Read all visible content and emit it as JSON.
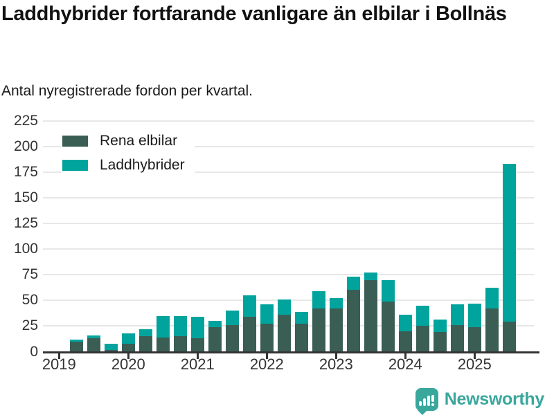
{
  "header": {
    "title": "Laddhybrider fortfarande vanligare än elbilar i Bollnäs",
    "subtitle": "Antal nyregistrerade fordon per kvartal."
  },
  "footer": {
    "brand": "Newsworthy"
  },
  "colors": {
    "electric_dark": "#3b5e54",
    "hybrid_teal": "#00a49d",
    "axis": "#333333",
    "gridline": "#e7e7e7",
    "brand_teal": "#3aa79d"
  },
  "chart_data": {
    "type": "bar",
    "stacked": true,
    "title": "Laddhybrider fortfarande vanligare än elbilar i Bollnäs",
    "subtitle": "Antal nyregistrerade fordon per kvartal.",
    "xlabel": "",
    "ylabel": "",
    "ylim": [
      0,
      225
    ],
    "ytick_step": 25,
    "grid": true,
    "legend_position": "top-left",
    "categories": [
      "2019 Q1",
      "2019 Q2",
      "2019 Q3",
      "2019 Q4",
      "2020 Q1",
      "2020 Q2",
      "2020 Q3",
      "2020 Q4",
      "2021 Q1",
      "2021 Q2",
      "2021 Q3",
      "2021 Q4",
      "2022 Q1",
      "2022 Q2",
      "2022 Q3",
      "2022 Q4",
      "2023 Q1",
      "2023 Q2",
      "2023 Q3",
      "2023 Q4",
      "2024 Q1",
      "2024 Q2",
      "2024 Q3",
      "2024 Q4",
      "2025 Q1",
      "2025 Q2",
      "2025 Q3"
    ],
    "series": [
      {
        "name": "Rena elbilar",
        "color": "#3b5e54",
        "values": [
          0,
          10,
          13,
          2,
          8,
          15,
          14,
          15,
          13,
          24,
          26,
          34,
          27,
          36,
          27,
          42,
          42,
          60,
          70,
          49,
          20,
          25,
          19,
          26,
          24,
          42,
          29
        ]
      },
      {
        "name": "Laddhybrider",
        "color": "#00a49d",
        "values": [
          0,
          2,
          3,
          6,
          10,
          7,
          21,
          20,
          21,
          6,
          14,
          21,
          19,
          15,
          12,
          17,
          10,
          13,
          7,
          21,
          16,
          20,
          12,
          20,
          23,
          20,
          154
        ]
      }
    ],
    "x_tick_labels": [
      "2019",
      "2020",
      "2021",
      "2022",
      "2023",
      "2024",
      "2025"
    ],
    "x_tick_positions": [
      0,
      4,
      8,
      12,
      16,
      20,
      24
    ]
  }
}
